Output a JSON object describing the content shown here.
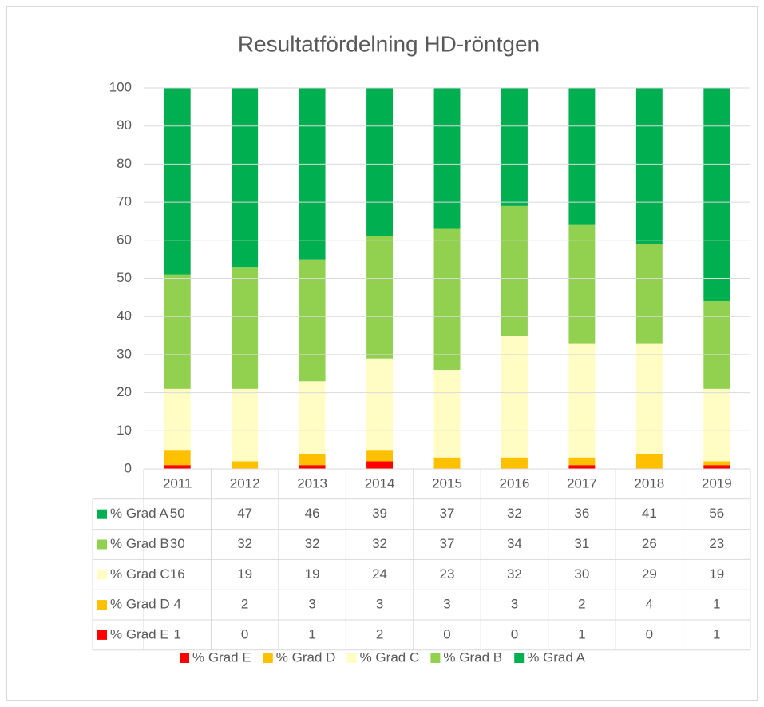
{
  "chart_data": {
    "type": "stacked_bar",
    "title": "Resultatfördelning HD-röntgen",
    "categories": [
      "2011",
      "2012",
      "2013",
      "2014",
      "2015",
      "2016",
      "2017",
      "2018",
      "2019"
    ],
    "series": [
      {
        "name": "% Grad E",
        "color": "#ff0000",
        "values": [
          1,
          0,
          1,
          2,
          0,
          0,
          1,
          0,
          1
        ]
      },
      {
        "name": "% Grad D",
        "color": "#ffc000",
        "values": [
          4,
          2,
          3,
          3,
          3,
          3,
          2,
          4,
          1
        ]
      },
      {
        "name": "% Grad C",
        "color": "#fffdc4",
        "values": [
          16,
          19,
          19,
          24,
          23,
          32,
          30,
          29,
          19
        ]
      },
      {
        "name": "% Grad B",
        "color": "#92d050",
        "values": [
          30,
          32,
          32,
          32,
          37,
          34,
          31,
          26,
          23
        ]
      },
      {
        "name": "% Grad A",
        "color": "#00b050",
        "values": [
          50,
          47,
          46,
          39,
          37,
          32,
          36,
          41,
          56
        ]
      }
    ],
    "ylim": [
      0,
      100
    ],
    "yticks": [
      0,
      10,
      20,
      30,
      40,
      50,
      60,
      70,
      80,
      90,
      100
    ],
    "grid": true,
    "legend": "bottom",
    "data_table": true
  }
}
